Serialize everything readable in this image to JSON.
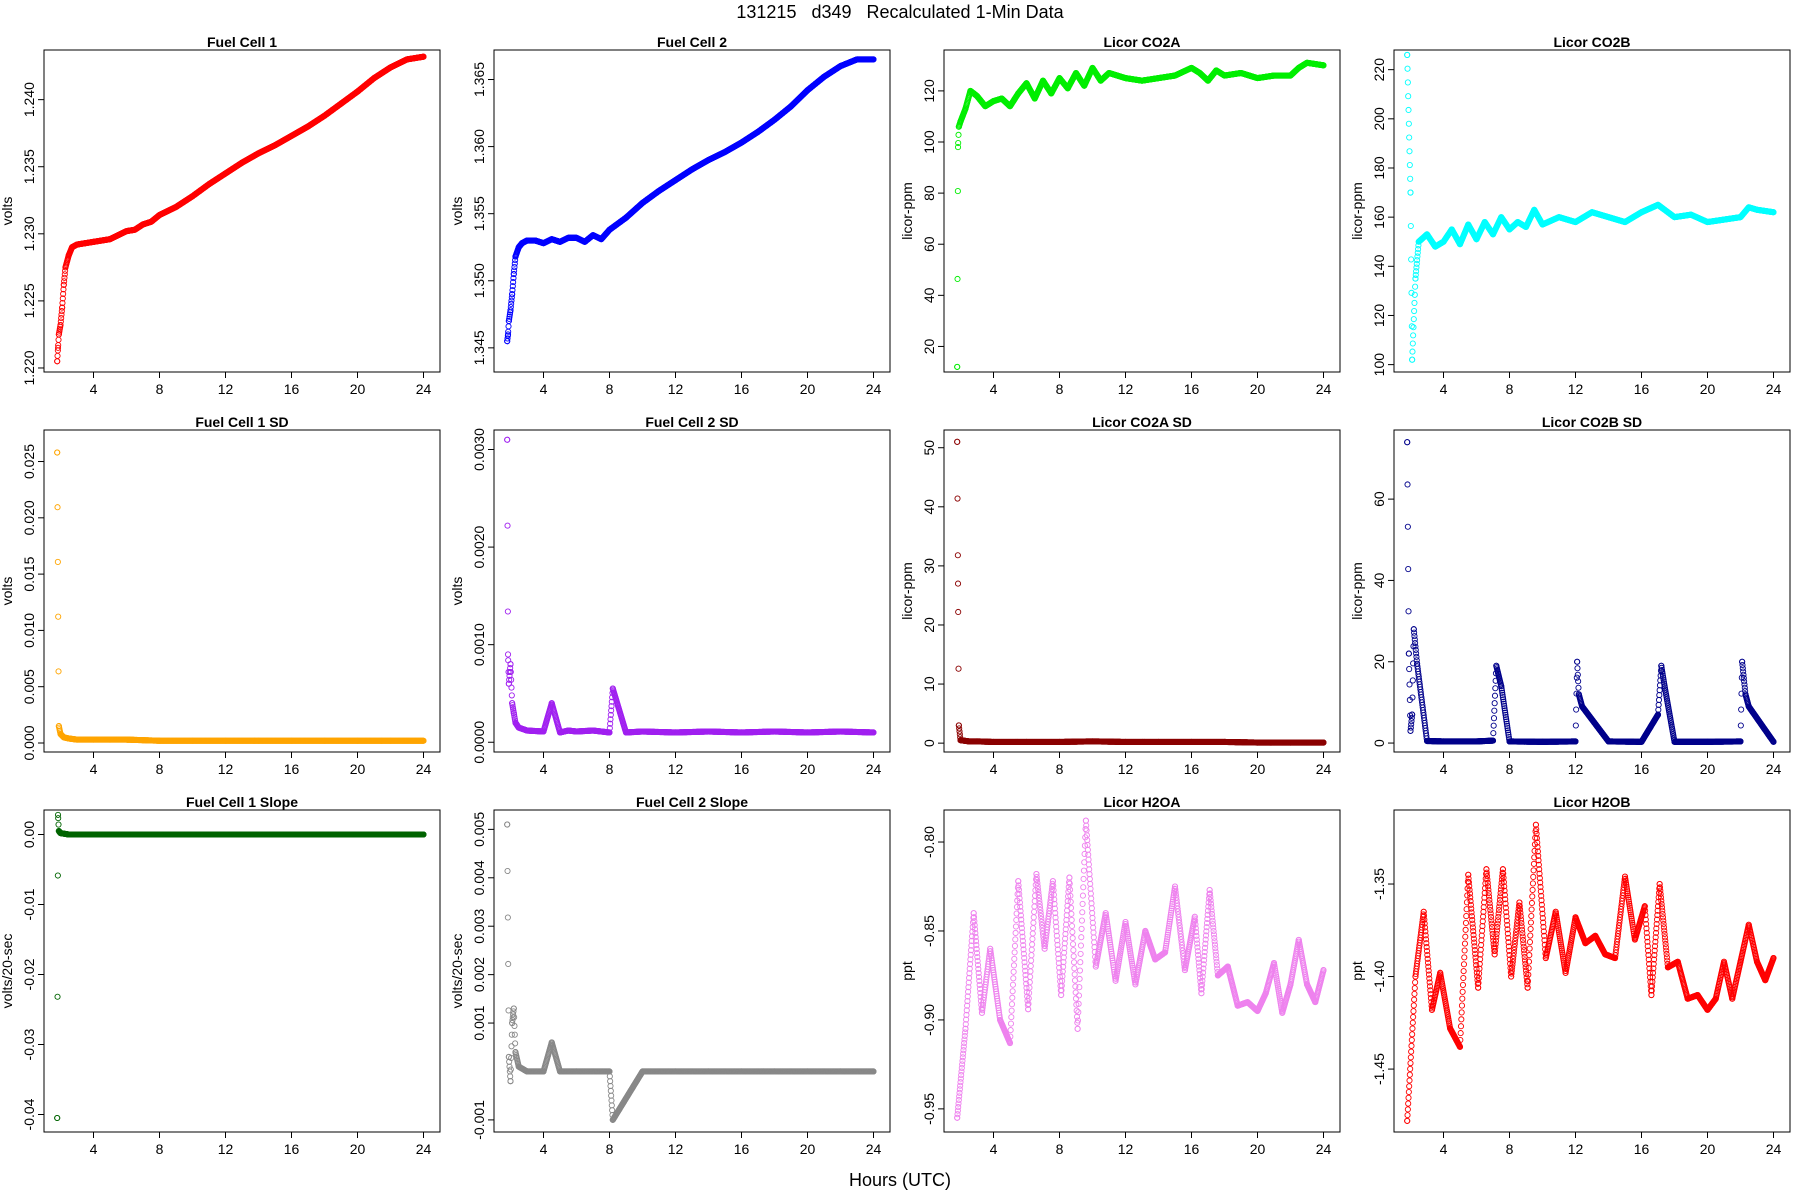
{
  "title": "131215   d349   Recalculated 1-Min Data",
  "xlabel": "Hours (UTC)",
  "chart_data": [
    {
      "type": "scatter",
      "title": "Fuel Cell 1",
      "ylabel": "volts",
      "color": "#ff0000",
      "xlim": [
        1,
        25
      ],
      "ylim": [
        1.2197,
        1.2437
      ],
      "xticks": [
        4,
        8,
        12,
        16,
        20,
        24
      ],
      "yticks": [
        1.22,
        1.225,
        1.23,
        1.235,
        1.24
      ],
      "ytick_labels": [
        "1.220",
        "1.225",
        "1.230",
        "1.235",
        "1.240"
      ],
      "series": {
        "x": [
          1.8,
          1.85,
          1.9,
          2.0,
          2.1,
          2.2,
          2.3,
          2.5,
          2.7,
          3.0,
          3.5,
          4.0,
          4.5,
          5.0,
          5.5,
          6.0,
          6.5,
          7.0,
          7.5,
          8.0,
          9.0,
          10.0,
          11.0,
          12.0,
          13.0,
          14.0,
          15.0,
          16.0,
          17.0,
          18.0,
          19.0,
          20.0,
          21.0,
          22.0,
          23.0,
          24.0
        ],
        "y": [
          1.2205,
          1.2215,
          1.2225,
          1.2232,
          1.2245,
          1.2262,
          1.2275,
          1.2284,
          1.229,
          1.2292,
          1.2293,
          1.2294,
          1.2295,
          1.2296,
          1.2299,
          1.2302,
          1.2303,
          1.2307,
          1.2309,
          1.2314,
          1.232,
          1.2328,
          1.2337,
          1.2345,
          1.2353,
          1.236,
          1.2366,
          1.2373,
          1.238,
          1.2388,
          1.2397,
          1.2406,
          1.2416,
          1.2424,
          1.243,
          1.2432
        ]
      }
    },
    {
      "type": "scatter",
      "title": "Fuel Cell 2",
      "ylabel": "volts",
      "color": "#0000ff",
      "xlim": [
        1,
        25
      ],
      "ylim": [
        1.3432,
        1.3672
      ],
      "xticks": [
        4,
        8,
        12,
        16,
        20,
        24
      ],
      "yticks": [
        1.345,
        1.35,
        1.355,
        1.36,
        1.365
      ],
      "ytick_labels": [
        "1.345",
        "1.350",
        "1.355",
        "1.360",
        "1.365"
      ],
      "series": {
        "x": [
          1.8,
          1.85,
          1.9,
          2.0,
          2.1,
          2.2,
          2.3,
          2.5,
          2.7,
          3.0,
          3.5,
          4.0,
          4.5,
          5.0,
          5.5,
          6.0,
          6.5,
          7.0,
          7.5,
          8.0,
          9.0,
          10.0,
          11.0,
          12.0,
          13.0,
          14.0,
          15.0,
          16.0,
          17.0,
          18.0,
          19.0,
          20.0,
          21.0,
          22.0,
          23.0,
          24.0
        ],
        "y": [
          1.3455,
          1.346,
          1.347,
          1.3478,
          1.349,
          1.3505,
          1.3518,
          1.3525,
          1.3528,
          1.353,
          1.353,
          1.3528,
          1.3531,
          1.3529,
          1.3532,
          1.3532,
          1.3529,
          1.3534,
          1.3531,
          1.3538,
          1.3547,
          1.3558,
          1.3567,
          1.3575,
          1.3583,
          1.359,
          1.3596,
          1.3603,
          1.3611,
          1.362,
          1.363,
          1.3642,
          1.3652,
          1.366,
          1.3665,
          1.3665
        ]
      }
    },
    {
      "type": "scatter",
      "title": "Licor CO2A",
      "ylabel": "licor-ppm",
      "color": "#00ee00",
      "xlim": [
        1,
        25
      ],
      "ylim": [
        10,
        136
      ],
      "xticks": [
        4,
        8,
        12,
        16,
        20,
        24
      ],
      "yticks": [
        20,
        40,
        60,
        80,
        100,
        120
      ],
      "ytick_labels": [
        "20",
        "40",
        "60",
        "80",
        "100",
        "120"
      ],
      "series": {
        "x": [
          1.8,
          1.85,
          1.9,
          2.0,
          2.3,
          2.6,
          3.0,
          3.5,
          4.0,
          4.5,
          5.0,
          5.5,
          6.0,
          6.5,
          7.0,
          7.5,
          8.0,
          8.5,
          9.0,
          9.5,
          10.0,
          10.5,
          11.0,
          12.0,
          13.0,
          14.0,
          15.0,
          16.0,
          16.5,
          17.0,
          17.5,
          18.0,
          19.0,
          20.0,
          21.0,
          22.0,
          22.5,
          23.0,
          24.0
        ],
        "y": [
          12,
          98,
          106,
          108,
          113,
          120,
          118,
          114,
          116,
          117,
          114,
          119,
          123,
          117,
          124,
          119,
          125,
          121,
          127,
          122,
          129,
          124,
          127,
          125,
          124,
          125,
          126,
          129,
          127,
          124,
          128,
          126,
          127,
          125,
          126,
          126,
          129,
          131,
          130
        ]
      }
    },
    {
      "type": "scatter",
      "title": "Licor CO2B",
      "ylabel": "licor-ppm",
      "color": "#00ffff",
      "xlim": [
        1,
        25
      ],
      "ylim": [
        97,
        228
      ],
      "xticks": [
        4,
        8,
        12,
        16,
        20,
        24
      ],
      "yticks": [
        100,
        120,
        140,
        160,
        180,
        200,
        220
      ],
      "ytick_labels": [
        "100",
        "120",
        "140",
        "160",
        "180",
        "200",
        "220"
      ],
      "series": {
        "x": [
          1.8,
          2.0,
          2.1,
          2.3,
          2.5,
          3.0,
          3.5,
          4.0,
          4.5,
          5.0,
          5.5,
          6.0,
          6.5,
          7.0,
          7.5,
          8.0,
          8.5,
          9.0,
          9.5,
          10.0,
          11.0,
          12.0,
          13.0,
          14.0,
          15.0,
          16.0,
          17.0,
          18.0,
          19.0,
          20.0,
          21.0,
          22.0,
          22.5,
          23.0,
          24.0
        ],
        "y": [
          226,
          170,
          102,
          135,
          150,
          153,
          148,
          150,
          155,
          149,
          157,
          151,
          158,
          153,
          160,
          155,
          158,
          156,
          163,
          157,
          160,
          158,
          162,
          160,
          158,
          162,
          165,
          160,
          161,
          158,
          159,
          160,
          164,
          163,
          162
        ]
      }
    },
    {
      "type": "scatter",
      "title": "Fuel Cell 1 SD",
      "ylabel": "volts",
      "color": "#ffa500",
      "xlim": [
        1,
        25
      ],
      "ylim": [
        -0.0008,
        0.0278
      ],
      "xticks": [
        4,
        8,
        12,
        16,
        20,
        24
      ],
      "yticks": [
        0.0,
        0.005,
        0.01,
        0.015,
        0.02,
        0.025
      ],
      "ytick_labels": [
        "0.000",
        "0.005",
        "0.010",
        "0.015",
        "0.020",
        "0.025"
      ],
      "series": {
        "x": [
          1.8,
          1.9,
          2.0,
          2.2,
          2.5,
          3.0,
          4.0,
          5.0,
          6.0,
          8.0,
          10.0,
          12.0,
          14.0,
          16.0,
          18.0,
          20.0,
          22.0,
          24.0
        ],
        "y": [
          0.0258,
          0.0015,
          0.0008,
          0.0005,
          0.0004,
          0.0003,
          0.0003,
          0.0003,
          0.0003,
          0.0002,
          0.0002,
          0.0002,
          0.0002,
          0.0002,
          0.0002,
          0.0002,
          0.0002,
          0.0002
        ]
      }
    },
    {
      "type": "scatter",
      "title": "Fuel Cell 2 SD",
      "ylabel": "volts",
      "color": "#a020f0",
      "xlim": [
        1,
        25
      ],
      "ylim": [
        -0.0001,
        0.0032
      ],
      "xticks": [
        4,
        8,
        12,
        16,
        20,
        24
      ],
      "yticks": [
        0.0,
        0.001,
        0.002,
        0.003
      ],
      "ytick_labels": [
        "0.0000",
        "0.0010",
        "0.0020",
        "0.0030"
      ],
      "series": {
        "x": [
          1.8,
          1.85,
          1.9,
          2.0,
          2.1,
          2.2,
          2.3,
          2.5,
          3.0,
          4.0,
          4.5,
          5.0,
          5.5,
          6.0,
          7.0,
          8.0,
          8.2,
          9.0,
          10.0,
          12.0,
          14.0,
          16.0,
          18.0,
          20.0,
          22.0,
          24.0
        ],
        "y": [
          0.0031,
          0.0009,
          0.0006,
          0.0008,
          0.0004,
          0.0003,
          0.0002,
          0.00015,
          0.00012,
          0.00011,
          0.0004,
          0.0001,
          0.00012,
          0.00011,
          0.00012,
          0.0001,
          0.00055,
          0.0001,
          0.00011,
          0.0001,
          0.00011,
          0.0001,
          0.00011,
          0.0001,
          0.00011,
          0.0001
        ]
      }
    },
    {
      "type": "scatter",
      "title": "Licor CO2A SD",
      "ylabel": "licor-ppm",
      "color": "#8b0000",
      "xlim": [
        1,
        25
      ],
      "ylim": [
        -1.5,
        53
      ],
      "xticks": [
        4,
        8,
        12,
        16,
        20,
        24
      ],
      "yticks": [
        0,
        10,
        20,
        30,
        40,
        50
      ],
      "ytick_labels": [
        "0",
        "10",
        "20",
        "30",
        "40",
        "50"
      ],
      "series": {
        "x": [
          1.8,
          1.85,
          1.9,
          2.0,
          2.5,
          3.0,
          4.0,
          6.0,
          8.0,
          10.0,
          12.0,
          14.0,
          16.0,
          18.0,
          20.0,
          22.0,
          24.0
        ],
        "y": [
          51,
          27,
          3,
          0.5,
          0.3,
          0.3,
          0.2,
          0.2,
          0.2,
          0.3,
          0.2,
          0.2,
          0.2,
          0.2,
          0.1,
          0.1,
          0.1
        ]
      }
    },
    {
      "type": "scatter",
      "title": "Licor CO2B SD",
      "ylabel": "licor-ppm",
      "color": "#00008b",
      "xlim": [
        1,
        25
      ],
      "ylim": [
        -2.2,
        77
      ],
      "xticks": [
        4,
        8,
        12,
        16,
        20,
        24
      ],
      "yticks": [
        0,
        20,
        40,
        60
      ],
      "ytick_labels": [
        "0",
        "20",
        "40",
        "60"
      ],
      "series": {
        "x": [
          1.8,
          1.9,
          2.0,
          2.1,
          2.2,
          2.4,
          3.0,
          4.0,
          6.0,
          7.0,
          7.2,
          7.5,
          8.0,
          10.0,
          12.0,
          12.1,
          12.2,
          12.4,
          14.0,
          16.0,
          17.0,
          17.2,
          17.4,
          18.0,
          20.0,
          22.0,
          22.1,
          22.3,
          22.5,
          24.0
        ],
        "y": [
          74,
          22,
          3,
          7,
          28,
          19.5,
          0.5,
          0.4,
          0.4,
          0.6,
          19,
          14,
          0.4,
          0.3,
          0.4,
          20,
          12,
          9,
          0.4,
          0.3,
          7,
          19,
          14,
          0.3,
          0.3,
          0.4,
          20,
          12,
          9,
          0.3
        ]
      }
    },
    {
      "type": "scatter",
      "title": "Fuel Cell 1 Slope",
      "ylabel": "volts/20-sec",
      "color": "#006400",
      "xlim": [
        1,
        25
      ],
      "ylim": [
        -0.0425,
        0.0035
      ],
      "xticks": [
        4,
        8,
        12,
        16,
        20,
        24
      ],
      "yticks": [
        -0.04,
        -0.03,
        -0.02,
        -0.01,
        0.0
      ],
      "ytick_labels": [
        "-0.04",
        "-0.03",
        "-0.02",
        "-0.01",
        "0.00"
      ],
      "series": {
        "x": [
          1.8,
          1.85,
          1.9,
          2.0,
          2.5,
          3.0,
          4.0,
          6.0,
          8.0,
          10.0,
          12.0,
          14.0,
          16.0,
          18.0,
          20.0,
          22.0,
          24.0
        ],
        "y": [
          -0.0405,
          0.0028,
          0.0005,
          0.0002,
          0.0,
          0.0,
          0.0,
          0.0,
          0.0,
          0.0,
          0.0,
          0.0,
          0.0,
          0.0,
          0.0,
          0.0,
          0.0
        ]
      }
    },
    {
      "type": "scatter",
      "title": "Fuel Cell 2 Slope",
      "ylabel": "volts/20-sec",
      "color": "#888888",
      "xlim": [
        1,
        25
      ],
      "ylim": [
        -0.00125,
        0.0054
      ],
      "xticks": [
        4,
        8,
        12,
        16,
        20,
        24
      ],
      "yticks": [
        -0.001,
        0.001,
        0.002,
        0.003,
        0.004,
        0.005
      ],
      "ytick_labels": [
        "-0.001",
        "0.001",
        "0.002",
        "0.003",
        "0.004",
        "0.005"
      ],
      "series": {
        "x": [
          1.8,
          1.9,
          2.0,
          2.1,
          2.2,
          2.3,
          2.5,
          3.0,
          4.0,
          4.5,
          5.0,
          6.0,
          8.0,
          8.2,
          10.0,
          12.0,
          14.0,
          16.0,
          18.0,
          20.0,
          22.0,
          24.0
        ],
        "y": [
          0.0051,
          0.0003,
          -0.0002,
          0.001,
          0.0013,
          0.0004,
          0.0001,
          0.0,
          0.0,
          0.0006,
          0.0,
          0.0,
          0.0,
          -0.001,
          0.0,
          0.0,
          0.0,
          0.0,
          0.0,
          0.0,
          0.0,
          0.0
        ]
      }
    },
    {
      "type": "scatter",
      "title": "Licor H2OA",
      "ylabel": "ppt",
      "color": "#ee82ee",
      "xlim": [
        1,
        25
      ],
      "ylim": [
        -0.963,
        -0.782
      ],
      "xticks": [
        4,
        8,
        12,
        16,
        20,
        24
      ],
      "yticks": [
        -0.95,
        -0.9,
        -0.85,
        -0.8
      ],
      "ytick_labels": [
        "-0.95",
        "-0.90",
        "-0.85",
        "-0.80"
      ],
      "series": {
        "x": [
          1.8,
          2.3,
          2.8,
          3.3,
          3.8,
          4.4,
          5.0,
          5.5,
          6.1,
          6.6,
          7.1,
          7.6,
          8.1,
          8.6,
          9.1,
          9.6,
          10.2,
          10.8,
          11.4,
          12.0,
          12.6,
          13.2,
          13.8,
          14.4,
          15.0,
          15.6,
          16.2,
          16.6,
          17.1,
          17.6,
          18.2,
          18.8,
          19.4,
          20.0,
          20.5,
          21.0,
          21.5,
          22.0,
          22.5,
          23.0,
          23.5,
          24.0
        ],
        "y": [
          -0.955,
          -0.905,
          -0.84,
          -0.896,
          -0.86,
          -0.9,
          -0.913,
          -0.822,
          -0.894,
          -0.818,
          -0.86,
          -0.822,
          -0.886,
          -0.82,
          -0.905,
          -0.788,
          -0.87,
          -0.84,
          -0.878,
          -0.845,
          -0.88,
          -0.85,
          -0.866,
          -0.862,
          -0.825,
          -0.872,
          -0.842,
          -0.885,
          -0.827,
          -0.875,
          -0.87,
          -0.892,
          -0.89,
          -0.895,
          -0.885,
          -0.868,
          -0.896,
          -0.88,
          -0.855,
          -0.88,
          -0.89,
          -0.872
        ]
      }
    },
    {
      "type": "scatter",
      "title": "Licor H2OB",
      "ylabel": "ppt",
      "color": "#ff0000",
      "xlim": [
        1,
        25
      ],
      "ylim": [
        -1.484,
        -1.31
      ],
      "xticks": [
        4,
        8,
        12,
        16,
        20,
        24
      ],
      "yticks": [
        -1.45,
        -1.4,
        -1.35
      ],
      "ytick_labels": [
        "-1.45",
        "-1.40",
        "-1.35"
      ],
      "series": {
        "x": [
          1.8,
          2.3,
          2.8,
          3.3,
          3.8,
          4.4,
          5.0,
          5.5,
          6.1,
          6.6,
          7.1,
          7.6,
          8.1,
          8.6,
          9.1,
          9.6,
          10.2,
          10.8,
          11.4,
          12.0,
          12.6,
          13.2,
          13.8,
          14.4,
          15.0,
          15.6,
          16.2,
          16.6,
          17.1,
          17.6,
          18.2,
          18.8,
          19.4,
          20.0,
          20.5,
          21.0,
          21.5,
          22.0,
          22.5,
          23.0,
          23.5,
          24.0
        ],
        "y": [
          -1.478,
          -1.4,
          -1.365,
          -1.418,
          -1.398,
          -1.428,
          -1.438,
          -1.345,
          -1.406,
          -1.342,
          -1.388,
          -1.342,
          -1.4,
          -1.36,
          -1.406,
          -1.318,
          -1.39,
          -1.365,
          -1.398,
          -1.368,
          -1.382,
          -1.378,
          -1.388,
          -1.39,
          -1.346,
          -1.38,
          -1.362,
          -1.41,
          -1.35,
          -1.395,
          -1.392,
          -1.412,
          -1.41,
          -1.418,
          -1.412,
          -1.392,
          -1.412,
          -1.392,
          -1.372,
          -1.392,
          -1.402,
          -1.39
        ]
      }
    }
  ]
}
